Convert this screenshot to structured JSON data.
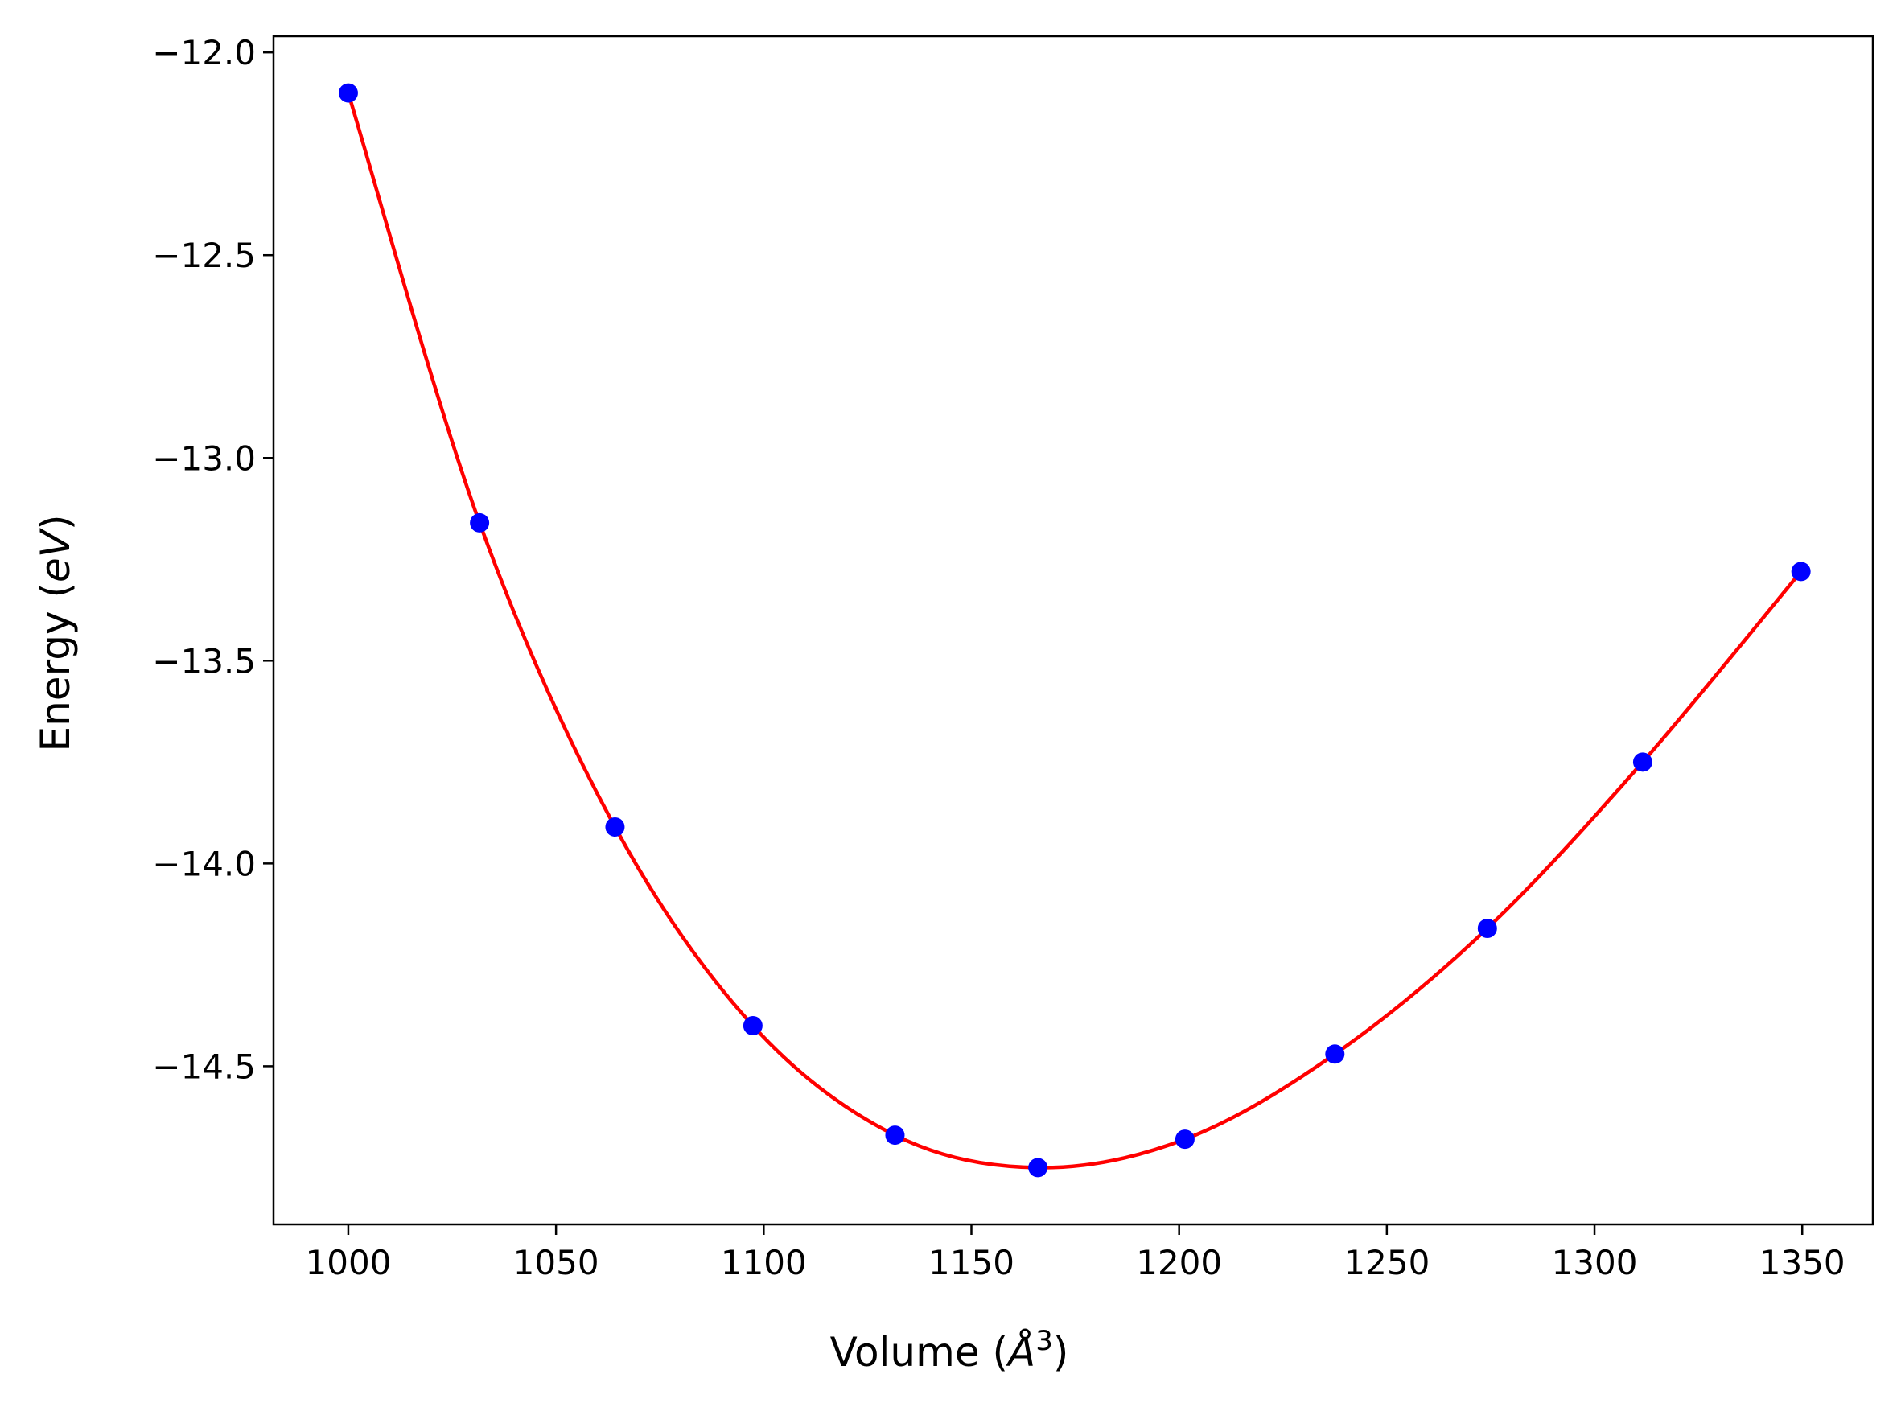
{
  "chart_data": {
    "type": "scatter",
    "xlabel_main": "Volume (",
    "xlabel_symbol": "Å",
    "xlabel_exp": "3",
    "xlabel_close": ")",
    "ylabel_main": "Energy (",
    "ylabel_unit": "eV",
    "ylabel_close": ")",
    "xlim": [
      982,
      1367
    ],
    "ylim": [
      -14.89,
      -11.96
    ],
    "xticks": [
      1000,
      1050,
      1100,
      1150,
      1200,
      1250,
      1300,
      1350
    ],
    "xtick_labels": [
      "1000",
      "1050",
      "1100",
      "1150",
      "1200",
      "1250",
      "1300",
      "1350"
    ],
    "yticks": [
      -12.0,
      -12.5,
      -13.0,
      -13.5,
      -14.0,
      -14.5
    ],
    "ytick_labels": [
      "−12.0",
      "−12.5",
      "−13.0",
      "−13.5",
      "−14.0",
      "−14.5"
    ],
    "grid": false,
    "series": [
      {
        "kind": "points",
        "color": "#0000ff",
        "x": [
          1000,
          1031.6,
          1064.2,
          1097.4,
          1131.6,
          1166.0,
          1201.4,
          1237.5,
          1274.2,
          1311.6,
          1349.7
        ],
        "y": [
          -12.1,
          -13.16,
          -13.91,
          -14.4,
          -14.67,
          -14.75,
          -14.68,
          -14.47,
          -14.16,
          -13.75,
          -13.28
        ]
      },
      {
        "kind": "fit-curve",
        "color": "#ff0000",
        "x": [
          1000,
          1031.6,
          1064.2,
          1097.4,
          1131.6,
          1166.0,
          1201.4,
          1237.5,
          1274.2,
          1311.6,
          1349.7
        ],
        "y": [
          -12.1,
          -13.16,
          -13.91,
          -14.4,
          -14.67,
          -14.75,
          -14.68,
          -14.47,
          -14.16,
          -13.75,
          -13.28
        ]
      }
    ]
  }
}
